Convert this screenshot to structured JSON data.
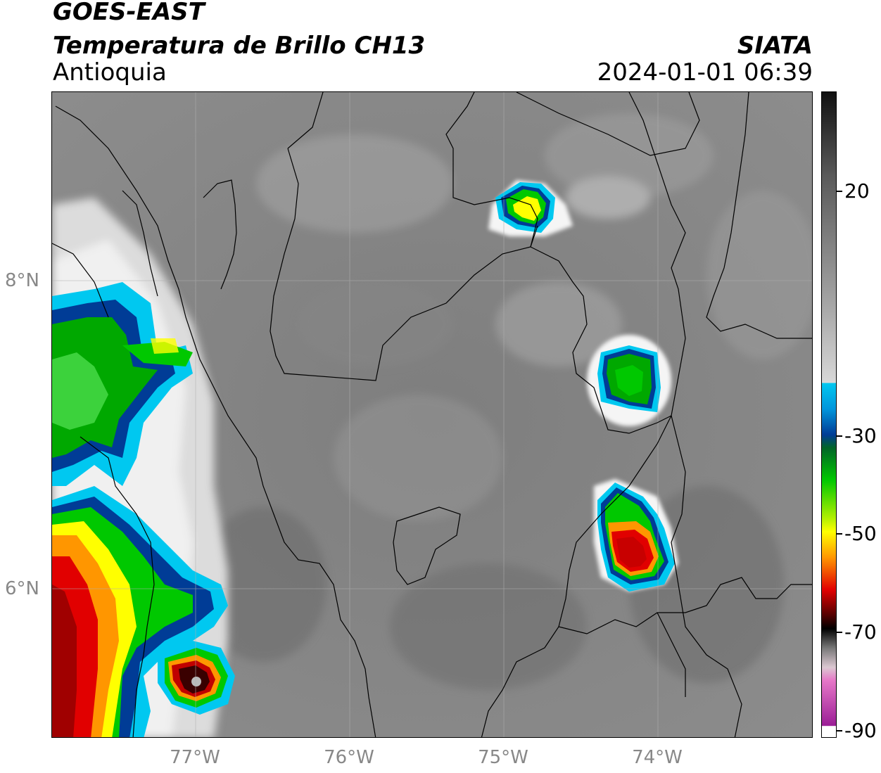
{
  "header": {
    "satellite": "GOES-EAST",
    "product": "Temperatura de Brillo CH13",
    "region": "Antioquia",
    "organization": "SIATA",
    "datetime": "2024-01-01 06:39"
  },
  "axes": {
    "x_ticks": [
      {
        "label": "77°W",
        "lon": -77
      },
      {
        "label": "76°W",
        "lon": -76
      },
      {
        "label": "75°W",
        "lon": -75
      },
      {
        "label": "74°W",
        "lon": -74
      }
    ],
    "y_ticks": [
      {
        "label": "8°N",
        "lat": 8
      },
      {
        "label": "6°N",
        "lat": 6
      }
    ],
    "lon_range": [
      -77.94,
      -73.0
    ],
    "lat_range": [
      5.0,
      9.22
    ],
    "grid": true
  },
  "colorbar": {
    "ticks": [
      {
        "label": "20",
        "value": 20
      },
      {
        "label": "-30",
        "value": -30
      },
      {
        "label": "-50",
        "value": -50
      },
      {
        "label": "-70",
        "value": -70
      },
      {
        "label": "-90",
        "value": -90
      }
    ],
    "colors": {
      "hot_gray_top": "#111111",
      "gray_mid": "#9a9a9a",
      "white": "#f5f5f5",
      "cyan": "#00c8f0",
      "blue": "#003c96",
      "green": "#00c800",
      "yellow": "#ffff00",
      "orange": "#ff9600",
      "red": "#e10000",
      "dark_red": "#500000",
      "black": "#000000",
      "pink": "#e678c8",
      "purple": "#9b1e96"
    }
  }
}
